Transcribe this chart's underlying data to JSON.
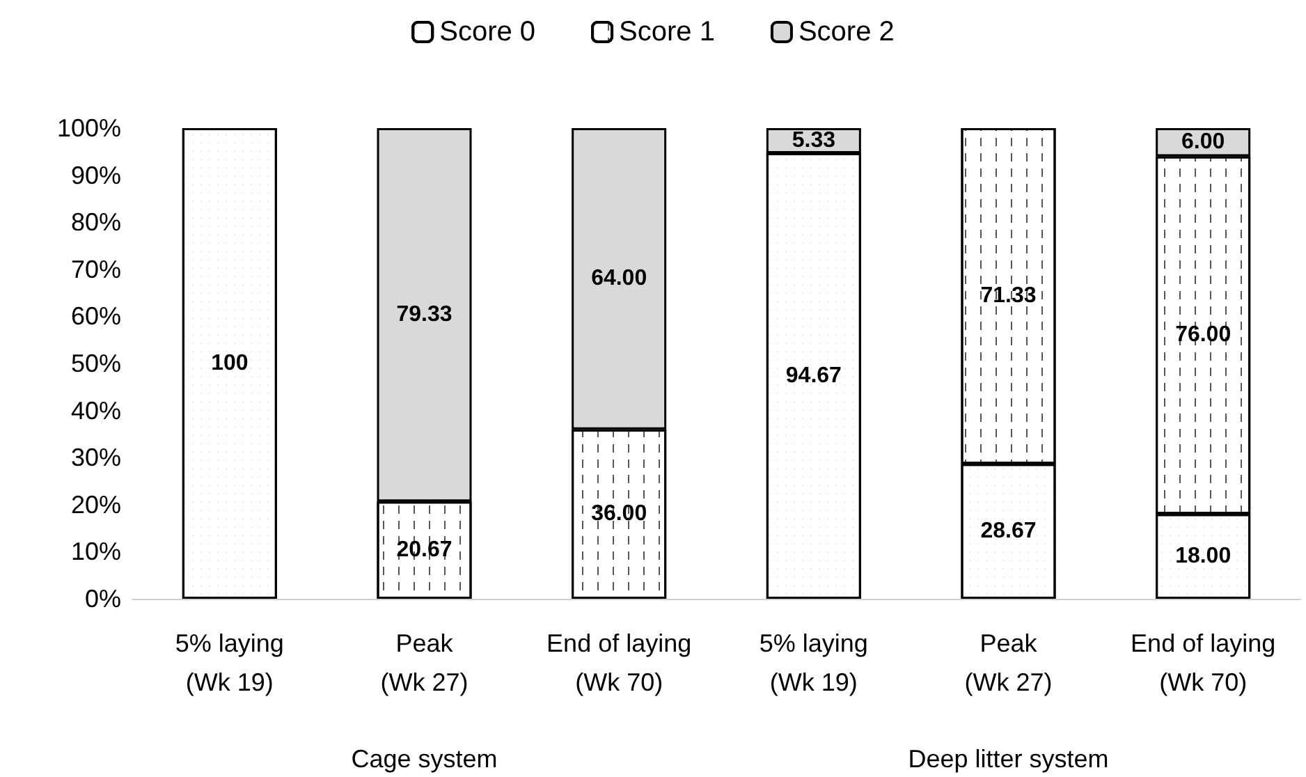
{
  "chart_data": {
    "type": "bar",
    "stacked": true,
    "categories": [
      "5% laying\n(Wk 19)",
      "Peak\n(Wk 27)",
      "End of laying\n(Wk 70)",
      "5% laying\n(Wk 19)",
      "Peak\n(Wk 27)",
      "End of laying\n(Wk 70)"
    ],
    "series": [
      {
        "name": "Score 0",
        "color": "#ffffff",
        "values": [
          100,
          null,
          null,
          94.67,
          28.67,
          18.0
        ],
        "value_labels": [
          "100",
          null,
          null,
          "94.67",
          "28.67",
          "18.00"
        ]
      },
      {
        "name": "Score 1",
        "color": "#ffffff",
        "values": [
          null,
          20.67,
          36.0,
          null,
          71.33,
          76.0
        ],
        "value_labels": [
          null,
          "20.67",
          "36.00",
          null,
          "71.33",
          "76.00"
        ]
      },
      {
        "name": "Score 2",
        "color": "#d9d9d9",
        "values": [
          null,
          79.33,
          64.0,
          5.33,
          null,
          6.0
        ],
        "value_labels": [
          null,
          "79.33",
          "64.00",
          "5.33",
          null,
          "6.00"
        ]
      }
    ],
    "ylim": [
      0,
      100
    ],
    "yticks": [
      {
        "value": 0,
        "label": "0%"
      },
      {
        "value": 10,
        "label": "10%"
      },
      {
        "value": 20,
        "label": "20%"
      },
      {
        "value": 30,
        "label": "30%"
      },
      {
        "value": 40,
        "label": "40%"
      },
      {
        "value": 50,
        "label": "50%"
      },
      {
        "value": 60,
        "label": "60%"
      },
      {
        "value": 70,
        "label": "70%"
      },
      {
        "value": 80,
        "label": "80%"
      },
      {
        "value": 90,
        "label": "90%"
      },
      {
        "value": 100,
        "label": "100%"
      }
    ],
    "annotations": [
      "Cage system",
      "Deep litter system"
    ],
    "legend": "top",
    "grid": false
  }
}
